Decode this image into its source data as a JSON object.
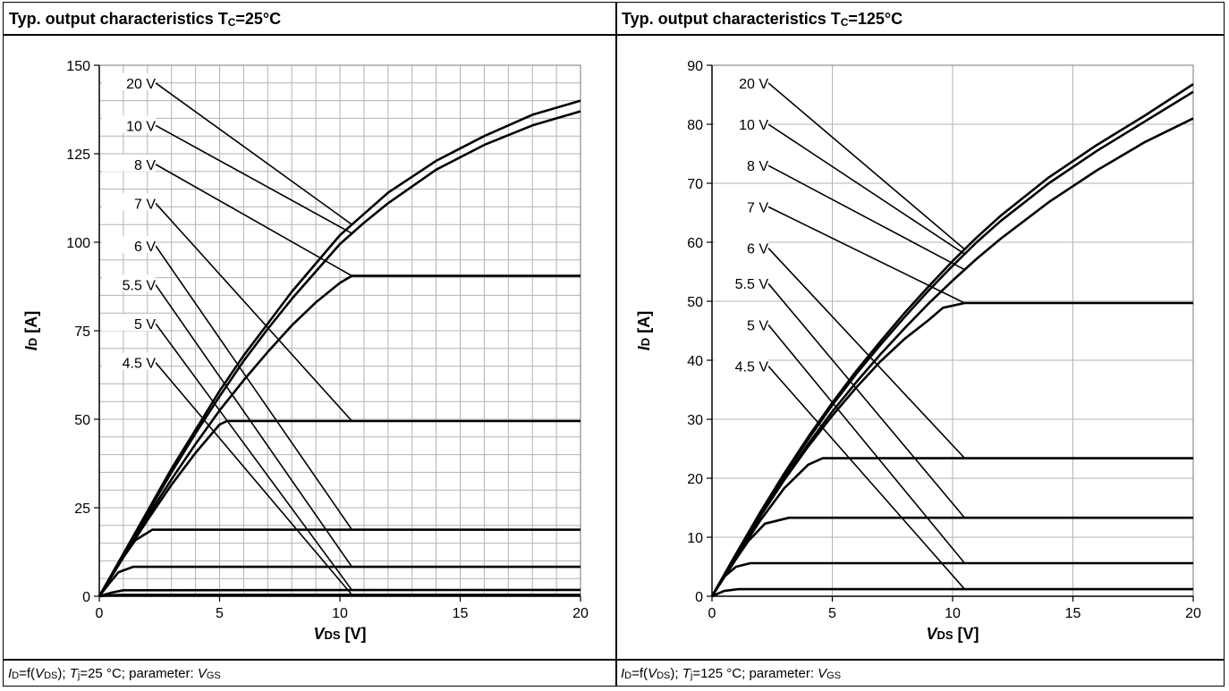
{
  "panels": [
    {
      "title_prefix": "Typ. output characteristics T",
      "title_sub": "C",
      "title_suffix": "=25°C",
      "caption": {
        "i1": "I",
        "s1": "D",
        "t1": "=f(",
        "i2": "V",
        "s2": "DS",
        "t2": "); ",
        "i3": "T",
        "s3": "j",
        "t3": "=25 °C; parameter: ",
        "i4": "V",
        "s4": "GS"
      }
    },
    {
      "title_prefix": "Typ. output characteristics T",
      "title_sub": "C",
      "title_suffix": "=125°C",
      "caption": {
        "i1": "I",
        "s1": "D",
        "t1": "=f(",
        "i2": "V",
        "s2": "DS",
        "t2": "); ",
        "i3": "T",
        "s3": "j",
        "t3": "=125 °C; parameter: ",
        "i4": "V",
        "s4": "GS"
      }
    }
  ],
  "chart_data": [
    {
      "type": "line",
      "xlabel": "VDS [V]",
      "ylabel": "ID [A]",
      "xlim": [
        0,
        20
      ],
      "ylim": [
        0,
        150
      ],
      "x_ticks": [
        0,
        5,
        10,
        15,
        20
      ],
      "y_ticks": [
        0,
        25,
        50,
        75,
        100,
        125,
        150
      ],
      "x_minor_step": 1,
      "y_minor_step": 5,
      "grid": true,
      "series": [
        {
          "name": "20 V",
          "x": [
            0,
            1,
            2,
            3,
            4,
            5,
            6,
            7,
            8,
            10,
            11,
            12,
            14,
            16,
            18,
            20
          ],
          "y": [
            0,
            12,
            24,
            36,
            47,
            58,
            68,
            77,
            86,
            102,
            108,
            114,
            123,
            130,
            136,
            140
          ],
          "label_y": 145,
          "target_x": 10.5
        },
        {
          "name": "10 V",
          "x": [
            0,
            1,
            2,
            3,
            4,
            5,
            6,
            7,
            8,
            10,
            11,
            12,
            14,
            16,
            18,
            20
          ],
          "y": [
            0,
            11.7,
            23.4,
            35,
            46,
            56.5,
            66.5,
            75.5,
            84,
            99.5,
            105.5,
            111,
            120.5,
            127.5,
            133,
            137
          ],
          "label_y": 133,
          "target_x": 10.5
        },
        {
          "name": "8 V",
          "x": [
            0,
            1,
            2,
            3,
            4,
            5,
            6,
            7,
            8,
            9,
            10,
            10.5,
            20
          ],
          "y": [
            0,
            11.2,
            22.4,
            33,
            43,
            52.5,
            61,
            69,
            76.5,
            83,
            88.5,
            90.5,
            90.5
          ],
          "label_y": 122,
          "target_x": 10.5
        },
        {
          "name": "7 V",
          "x": [
            0,
            1,
            2,
            3,
            4,
            5,
            5.3,
            20
          ],
          "y": [
            0,
            11,
            21.5,
            31.5,
            40.5,
            48.5,
            49.5,
            49.5
          ],
          "label_y": 111,
          "target_x": 10.5
        },
        {
          "name": "6 V",
          "x": [
            0,
            0.5,
            1,
            1.5,
            2.2,
            20
          ],
          "y": [
            0,
            5.5,
            11,
            15.8,
            18.8,
            18.8
          ],
          "label_y": 99,
          "target_x": 10.5
        },
        {
          "name": "5.5 V",
          "x": [
            0,
            0.4,
            0.8,
            1.4,
            20
          ],
          "y": [
            0,
            3.5,
            6.8,
            8.3,
            8.3
          ],
          "label_y": 88,
          "target_x": 10.5
        },
        {
          "name": "5 V",
          "x": [
            0,
            0.5,
            1,
            20
          ],
          "y": [
            0,
            1,
            1.7,
            1.8
          ],
          "label_y": 77,
          "target_x": 10.5
        },
        {
          "name": "4.5 V",
          "x": [
            0,
            0.5,
            1,
            20
          ],
          "y": [
            0,
            0.3,
            0.4,
            0.4
          ],
          "label_y": 66,
          "target_x": 10.5
        }
      ]
    },
    {
      "type": "line",
      "xlabel": "VDS [V]",
      "ylabel": "ID [A]",
      "xlim": [
        0,
        20
      ],
      "ylim": [
        0,
        90
      ],
      "x_ticks": [
        0,
        5,
        10,
        15,
        20
      ],
      "y_ticks": [
        0,
        10,
        20,
        30,
        40,
        50,
        60,
        70,
        80,
        90
      ],
      "x_minor_step": 5,
      "y_minor_step": 10,
      "grid": true,
      "series": [
        {
          "name": "20 V",
          "x": [
            0,
            1,
            2,
            3,
            4,
            5,
            6,
            7,
            8,
            9,
            10,
            11,
            12,
            14,
            16,
            18,
            20
          ],
          "y": [
            0,
            7.2,
            14.2,
            20.8,
            27,
            32.8,
            38.2,
            43.2,
            48,
            52.5,
            56.8,
            60.8,
            64.5,
            71,
            76.5,
            81.5,
            86.8
          ],
          "label_y": 87,
          "target_x": 10.5
        },
        {
          "name": "10 V",
          "x": [
            0,
            1,
            2,
            3,
            4,
            5,
            6,
            7,
            8,
            9,
            10,
            11,
            12,
            14,
            16,
            18,
            20
          ],
          "y": [
            0,
            7.1,
            14,
            20.5,
            26.6,
            32.4,
            37.7,
            42.6,
            47.3,
            51.8,
            56,
            60,
            63.6,
            70,
            75.5,
            80.5,
            85.5
          ],
          "label_y": 80,
          "target_x": 10.5
        },
        {
          "name": "8 V",
          "x": [
            0,
            1,
            2,
            3,
            4,
            5,
            6,
            7,
            8,
            9,
            10,
            11,
            12,
            14,
            16,
            18,
            20
          ],
          "y": [
            0,
            7,
            13.6,
            19.9,
            25.8,
            31.3,
            36.3,
            41,
            45.4,
            49.6,
            53.5,
            57.2,
            60.6,
            66.8,
            72.2,
            77,
            81
          ],
          "label_y": 73,
          "target_x": 10.5
        },
        {
          "name": "7 V",
          "x": [
            0,
            1,
            2,
            3,
            4,
            5,
            6,
            7,
            8,
            9,
            9.6,
            10.5,
            20
          ],
          "y": [
            0,
            7,
            13.5,
            19.7,
            25.4,
            30.6,
            35.4,
            39.8,
            43.6,
            46.8,
            48.9,
            49.7,
            49.7
          ],
          "label_y": 66,
          "target_x": 10.5
        },
        {
          "name": "6 V",
          "x": [
            0,
            1,
            2,
            3,
            4,
            4.6,
            20
          ],
          "y": [
            0,
            6.6,
            12.8,
            18.3,
            22.3,
            23.4,
            23.4
          ],
          "label_y": 59,
          "target_x": 10.5
        },
        {
          "name": "5.5 V",
          "x": [
            0,
            1,
            1.5,
            2.2,
            3.2,
            20
          ],
          "y": [
            0,
            6.3,
            9.3,
            12.3,
            13.3,
            13.3
          ],
          "label_y": 53,
          "target_x": 10.5
        },
        {
          "name": "5 V",
          "x": [
            0,
            0.5,
            1,
            1.6,
            20
          ],
          "y": [
            0,
            3.3,
            5,
            5.6,
            5.6
          ],
          "label_y": 46,
          "target_x": 10.5
        },
        {
          "name": "4.5 V",
          "x": [
            0,
            0.5,
            1.1,
            20
          ],
          "y": [
            0,
            0.9,
            1.2,
            1.2
          ],
          "label_y": 39,
          "target_x": 10.5
        }
      ]
    }
  ]
}
